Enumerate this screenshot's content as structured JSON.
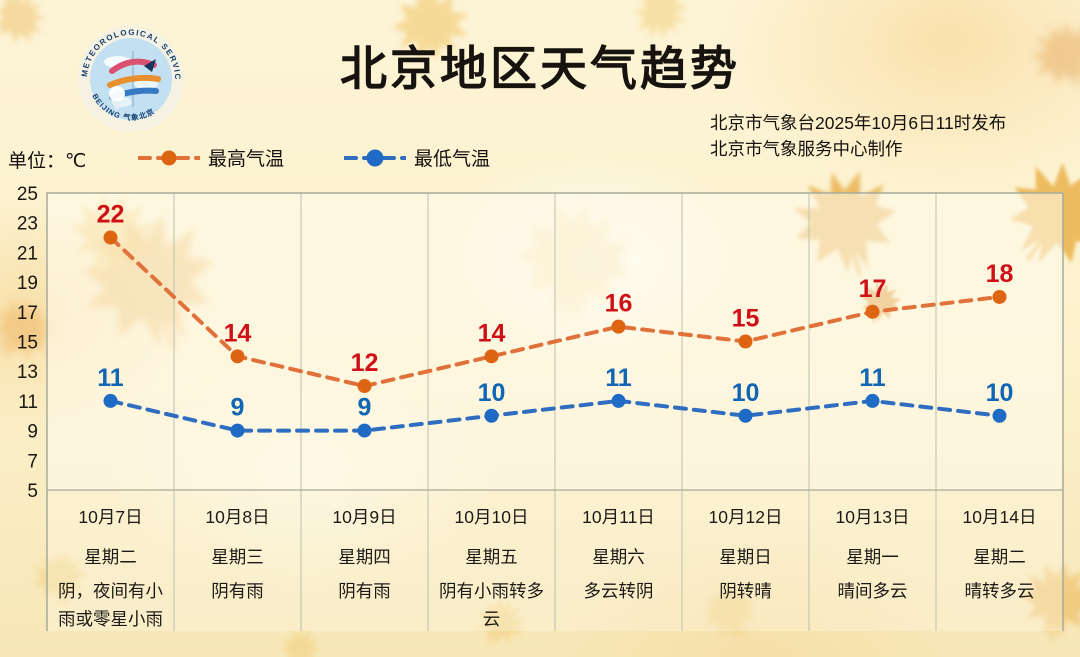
{
  "page": {
    "title": "北京地区天气趋势"
  },
  "publisher": {
    "line1": "北京市气象台2025年10月6日11时发布",
    "line2": "北京市气象服务中心制作"
  },
  "unit_label": "单位：℃",
  "legend": {
    "high_label": "最高气温",
    "low_label": "最低气温"
  },
  "logo": {
    "ring_text_top": "METEOROLOGICAL SERVICE",
    "ring_text_bottom": "BEIJING  气象北京"
  },
  "colors": {
    "high_line": "#e0713b",
    "high_dot": "#dd6512",
    "high_value": "#cf1016",
    "low_line": "#2f6dc1",
    "low_dot": "#1f6ac5",
    "low_value": "#1166b3",
    "axis_text": "#1a1712",
    "grid_line": "#bcc0ae",
    "border_line": "#a6ab9a",
    "plot_fill": "rgba(255,252,238,0.55)",
    "label_fill": "rgba(255,252,238,0.3)"
  },
  "chart_data": {
    "type": "line",
    "title": "北京地区天气趋势",
    "unit": "℃",
    "ylim": [
      5,
      25
    ],
    "yticks": [
      25,
      23,
      21,
      19,
      17,
      15,
      13,
      11,
      9,
      7,
      5
    ],
    "grid": "vertical-column-dividers",
    "legend_position": "top-left",
    "categories": [
      "10月7日",
      "10月8日",
      "10月9日",
      "10月10日",
      "10月11日",
      "10月12日",
      "10月13日",
      "10月14日"
    ],
    "weekdays": [
      "星期二",
      "星期三",
      "星期四",
      "星期五",
      "星期六",
      "星期日",
      "星期一",
      "星期二"
    ],
    "weather": [
      "阴，夜间有小雨或零星小雨",
      "阴有雨",
      "阴有雨",
      "阴有小雨转多云",
      "多云转阴",
      "阴转晴",
      "晴间多云",
      "晴转多云"
    ],
    "series": [
      {
        "name": "最高气温",
        "values": [
          22,
          14,
          12,
          14,
          16,
          15,
          17,
          18
        ]
      },
      {
        "name": "最低气温",
        "values": [
          11,
          9,
          9,
          10,
          11,
          10,
          11,
          10
        ]
      }
    ]
  }
}
